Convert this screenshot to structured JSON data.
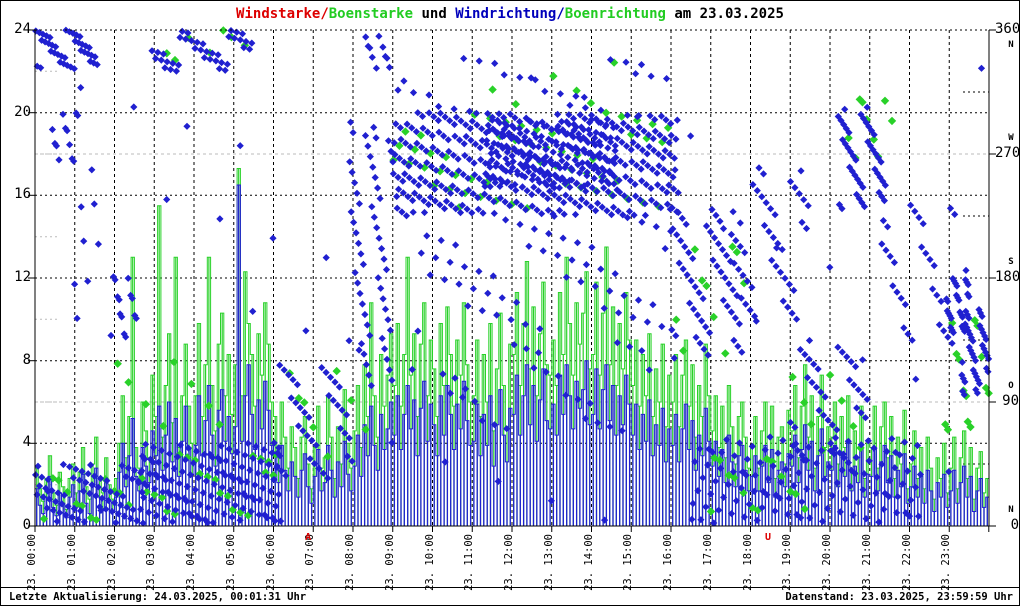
{
  "title": {
    "segments": [
      {
        "text": "Windstarke/",
        "color": "#dd0000"
      },
      {
        "text": "Boenstarke",
        "color": "#22cc22"
      },
      {
        "text": " und ",
        "color": "#000000"
      },
      {
        "text": "Windrichtung/",
        "color": "#0000bb"
      },
      {
        "text": "Boenrichtung",
        "color": "#22cc22"
      },
      {
        "text": " am 23.03.2025",
        "color": "#000000"
      }
    ]
  },
  "status_bar": {
    "left": "Letzte Aktualisierung: 24.03.2025, 00:01:31 Uhr",
    "right": "Datenstand: 23.03.2025, 23:59:59 Uhr"
  },
  "chart_data": {
    "type": "scatter",
    "title": "Windstarke/Boenstarke und Windrichtung/Boenrichtung am 23.03.2025",
    "grid": "on",
    "x_axis": {
      "range_hours": [
        0,
        24
      ],
      "tick_labels": [
        "23. 00:00",
        "23. 01:00",
        "23. 02:00",
        "23. 03:00",
        "23. 04:00",
        "23. 05:00",
        "23. 06:00",
        "23. 07:00",
        "23. 08:00",
        "23. 09:00",
        "23. 10:00",
        "23. 11:00",
        "23. 12:00",
        "23. 13:00",
        "23. 14:00",
        "23. 15:00",
        "23. 16:00",
        "23. 17:00",
        "23. 18:00",
        "23. 19:00",
        "23. 20:00",
        "23. 21:00",
        "23. 22:00",
        "23. 23:00"
      ]
    },
    "y_left": {
      "range": [
        0,
        24
      ],
      "major_ticks": [
        0,
        4,
        8,
        12,
        16,
        20,
        24
      ],
      "minor_ticks": [
        2,
        6,
        10,
        14,
        18,
        22
      ]
    },
    "y_right": {
      "range": [
        0,
        360
      ],
      "major_ticks": [
        {
          "value": 360,
          "compass": "N",
          "compass_pos": "below"
        },
        {
          "value": 270,
          "compass": "W",
          "compass_pos": "above"
        },
        {
          "value": 180,
          "compass": "S",
          "compass_pos": "above"
        },
        {
          "value": 90,
          "compass": "O",
          "compass_pos": "above"
        },
        {
          "value": 0,
          "compass": "N",
          "compass_pos": "above"
        }
      ],
      "minor_ticks": [
        45,
        135,
        225,
        315
      ]
    },
    "sun_markers": [
      {
        "label": "A",
        "hour": 6.87
      },
      {
        "label": "U",
        "hour": 18.44
      }
    ],
    "colors": {
      "wind": "#2020d0",
      "gust": "#29d129",
      "grid_major": "#000000",
      "grid_minor": "#bbbbbb",
      "sun_marker": "#dd0000"
    },
    "series": {
      "windstaerke": {
        "name": "Windstarke",
        "render": "spikes",
        "axis": "left",
        "step_minutes": 5,
        "values_by_hour": [
          [
            1.8,
            1.0,
            0.6,
            1.4,
            2.4,
            0.9,
            0.5,
            1.6,
            1.1,
            0.4,
            1.4,
            2.0
          ],
          [
            0.9,
            1.7,
            2.5,
            1.1,
            0.6,
            1.9,
            2.8,
            1.4,
            0.8,
            2.1,
            1.2,
            0.7
          ],
          [
            1.4,
            2.6,
            4.0,
            1.9,
            3.4,
            5.2,
            2.4,
            1.7,
            3.8,
            2.9,
            2.1,
            4.6
          ],
          [
            3.4,
            5.8,
            2.7,
            4.4,
            6.0,
            3.1,
            5.2,
            2.4,
            4.1,
            5.8,
            3.7,
            2.5
          ],
          [
            3.9,
            6.3,
            3.4,
            5.1,
            6.8,
            4.4,
            2.9,
            5.6,
            6.6,
            4.1,
            5.3,
            3.5
          ],
          [
            4.8,
            16.5,
            4.1,
            6.3,
            7.8,
            5.4,
            3.7,
            6.1,
            4.7,
            7.0,
            5.6,
            3.9
          ],
          [
            3.4,
            2.1,
            3.9,
            2.7,
            1.7,
            3.1,
            2.4,
            1.4,
            2.7,
            3.5,
            1.9,
            1.1
          ],
          [
            2.4,
            3.7,
            1.7,
            2.1,
            3.9,
            2.7,
            1.4,
            3.1,
            1.9,
            4.1,
            2.5,
            1.7
          ],
          [
            2.9,
            4.4,
            2.4,
            4.9,
            3.4,
            5.8,
            3.9,
            2.7,
            5.4,
            3.7,
            4.7,
            6.0
          ],
          [
            4.4,
            6.3,
            3.7,
            5.4,
            6.8,
            4.7,
            6.1,
            3.4,
            5.7,
            7.0,
            4.1,
            5.9
          ],
          [
            4.9,
            3.4,
            6.3,
            4.4,
            6.8,
            5.4,
            3.7,
            5.9,
            4.7,
            7.0,
            5.1,
            3.9
          ],
          [
            4.1,
            5.9,
            3.4,
            5.4,
            3.9,
            6.3,
            2.9,
            4.9,
            6.6,
            4.4,
            3.1,
            5.7
          ],
          [
            5.4,
            7.3,
            4.4,
            6.3,
            7.8,
            4.9,
            6.8,
            4.1,
            6.1,
            7.6,
            5.1,
            4.7
          ],
          [
            5.9,
            4.4,
            7.3,
            5.4,
            7.8,
            6.3,
            4.7,
            7.0,
            5.7,
            6.6,
            8.0,
            4.9
          ],
          [
            5.4,
            7.6,
            4.7,
            6.6,
            7.8,
            5.1,
            6.8,
            4.4,
            6.3,
            4.9,
            7.3,
            5.9
          ],
          [
            4.4,
            5.9,
            3.7,
            5.4,
            4.1,
            6.1,
            3.4,
            4.9,
            3.9,
            5.7,
            3.1,
            4.7
          ],
          [
            3.9,
            5.4,
            3.1,
            4.7,
            5.9,
            3.7,
            5.1,
            2.7,
            4.4,
            3.4,
            5.7,
            4.1
          ],
          [
            2.9,
            4.1,
            2.4,
            3.7,
            2.1,
            4.4,
            3.1,
            1.9,
            3.4,
            3.9,
            2.7,
            1.7
          ],
          [
            2.4,
            3.4,
            1.7,
            2.9,
            3.9,
            2.1,
            3.7,
            1.4,
            2.7,
            3.1,
            1.9,
            3.5
          ],
          [
            2.9,
            4.4,
            2.1,
            3.7,
            4.9,
            2.7,
            4.1,
            1.7,
            3.4,
            4.7,
            2.4,
            3.1
          ],
          [
            2.7,
            3.9,
            1.9,
            3.4,
            2.4,
            4.1,
            1.7,
            2.9,
            2.1,
            3.7,
            1.4,
            2.5
          ],
          [
            2.4,
            3.7,
            1.7,
            3.1,
            3.9,
            2.1,
            3.4,
            1.4,
            2.7,
            1.9,
            3.5,
            1.1
          ],
          [
            1.9,
            2.9,
            1.4,
            2.4,
            1.1,
            2.7,
            1.7,
            0.7,
            2.1,
            1.4,
            2.5,
            0.9
          ],
          [
            1.7,
            2.7,
            1.1,
            2.1,
            2.9,
            1.4,
            2.4,
            0.7,
            1.7,
            2.3,
            0.9,
            1.4
          ]
        ]
      },
      "boenstaerke": {
        "name": "Boenstarke",
        "render": "step",
        "axis": "left",
        "step_minutes": 5,
        "values_by_hour": [
          [
            2.8,
            1.8,
            1.2,
            2.3,
            3.4,
            1.6,
            1.0,
            2.6,
            1.9,
            0.8,
            2.3,
            3.0
          ],
          [
            1.6,
            2.6,
            3.8,
            1.9,
            1.3,
            3.0,
            4.3,
            2.3,
            1.6,
            3.3,
            2.0,
            1.3
          ],
          [
            2.3,
            4.0,
            6.3,
            3.3,
            5.3,
            13.0,
            3.8,
            2.8,
            6.0,
            4.6,
            3.3,
            7.3
          ],
          [
            5.3,
            15.5,
            4.3,
            6.8,
            9.3,
            5.0,
            13.0,
            3.8,
            6.3,
            8.8,
            5.8,
            4.0
          ],
          [
            6.3,
            9.8,
            5.3,
            7.8,
            13.0,
            6.8,
            4.6,
            8.8,
            10.3,
            6.3,
            8.3,
            5.4
          ],
          [
            7.8,
            17.3,
            6.3,
            12.3,
            9.8,
            8.3,
            5.8,
            9.3,
            7.3,
            10.8,
            8.8,
            6.0
          ],
          [
            5.3,
            3.3,
            6.0,
            4.3,
            2.8,
            4.8,
            3.8,
            2.3,
            4.3,
            5.3,
            3.0,
            1.8
          ],
          [
            3.8,
            5.8,
            2.8,
            3.3,
            6.3,
            4.3,
            2.3,
            4.8,
            3.0,
            6.6,
            4.0,
            2.8
          ],
          [
            4.6,
            6.8,
            3.8,
            7.8,
            5.3,
            10.8,
            6.3,
            4.3,
            8.3,
            5.8,
            7.3,
            9.3
          ],
          [
            6.8,
            9.8,
            5.8,
            8.3,
            13.0,
            7.3,
            9.3,
            5.3,
            8.8,
            10.8,
            6.3,
            9.0
          ],
          [
            7.6,
            5.3,
            9.8,
            6.8,
            10.6,
            8.3,
            5.8,
            9.0,
            7.3,
            10.8,
            7.8,
            6.0
          ],
          [
            6.3,
            9.0,
            5.3,
            8.3,
            6.0,
            9.8,
            4.6,
            7.6,
            10.3,
            6.8,
            4.8,
            8.8
          ],
          [
            8.3,
            11.3,
            6.8,
            9.8,
            12.8,
            7.6,
            10.6,
            6.3,
            9.3,
            11.8,
            7.8,
            7.3
          ],
          [
            9.0,
            6.8,
            11.3,
            8.3,
            13.0,
            9.8,
            7.3,
            10.8,
            8.8,
            10.3,
            12.3,
            7.6
          ],
          [
            8.3,
            11.8,
            7.3,
            10.3,
            13.5,
            7.8,
            10.6,
            6.8,
            9.8,
            7.6,
            11.3,
            9.0
          ],
          [
            6.8,
            9.0,
            5.8,
            8.3,
            6.3,
            9.3,
            5.3,
            7.6,
            6.0,
            8.8,
            4.8,
            7.3
          ],
          [
            6.0,
            8.3,
            4.8,
            7.3,
            9.0,
            5.8,
            7.8,
            4.3,
            6.8,
            5.3,
            8.8,
            6.3
          ],
          [
            4.6,
            6.3,
            3.8,
            5.8,
            3.3,
            6.8,
            4.8,
            3.0,
            5.3,
            6.0,
            4.3,
            2.8
          ],
          [
            3.8,
            5.3,
            2.8,
            4.6,
            6.0,
            3.3,
            5.8,
            2.3,
            4.3,
            4.8,
            3.0,
            5.6
          ],
          [
            4.6,
            6.8,
            3.3,
            5.8,
            7.8,
            4.3,
            6.3,
            2.8,
            5.3,
            7.3,
            3.8,
            4.8
          ],
          [
            4.3,
            6.0,
            3.0,
            5.3,
            3.8,
            6.3,
            2.8,
            4.6,
            3.3,
            5.8,
            2.3,
            4.0
          ],
          [
            3.8,
            5.8,
            2.8,
            4.8,
            6.0,
            3.3,
            5.3,
            2.3,
            4.3,
            3.0,
            5.6,
            1.8
          ],
          [
            3.0,
            4.6,
            2.3,
            3.8,
            1.8,
            4.3,
            2.8,
            1.3,
            3.3,
            2.3,
            4.0,
            1.6
          ],
          [
            2.8,
            4.3,
            1.8,
            3.3,
            4.6,
            2.3,
            3.8,
            1.3,
            2.8,
            3.6,
            1.6,
            2.3
          ]
        ]
      },
      "windrichtung": {
        "name": "Windrichtung",
        "render": "diamonds",
        "axis": "right",
        "clusters_t0_t1_deg0_deg1_n": [
          [
            0.0,
            1.6,
            330,
            360,
            40
          ],
          [
            0.0,
            2.8,
            2,
            45,
            70
          ],
          [
            0.4,
            1.1,
            260,
            305,
            12
          ],
          [
            0.9,
            1.6,
            150,
            260,
            8
          ],
          [
            1.9,
            2.6,
            130,
            185,
            14
          ],
          [
            2.6,
            6.2,
            2,
            60,
            130
          ],
          [
            2.9,
            5.5,
            330,
            360,
            40
          ],
          [
            6.0,
            8.0,
            30,
            120,
            40
          ],
          [
            7.9,
            9.0,
            100,
            295,
            55
          ],
          [
            8.3,
            9.0,
            330,
            360,
            10
          ],
          [
            9.0,
            16.2,
            225,
            300,
            380
          ],
          [
            11.3,
            14.6,
            245,
            295,
            160
          ],
          [
            9.5,
            16.0,
            140,
            225,
            55
          ],
          [
            10.0,
            15.5,
            60,
            135,
            25
          ],
          [
            9.0,
            16.0,
            300,
            345,
            25
          ],
          [
            16.0,
            17.8,
            120,
            230,
            55
          ],
          [
            16.5,
            22.3,
            2,
            65,
            120
          ],
          [
            17.5,
            19.5,
            150,
            262,
            45
          ],
          [
            19.0,
            21.0,
            40,
            130,
            40
          ],
          [
            20.2,
            21.4,
            230,
            305,
            45
          ],
          [
            21.3,
            23.2,
            120,
            235,
            30
          ],
          [
            22.9,
            23.5,
            140,
            186,
            28
          ],
          [
            23.3,
            24.0,
            95,
            158,
            42
          ],
          [
            0.0,
            24.0,
            0,
            360,
            36
          ]
        ]
      },
      "boenrichtung": {
        "name": "Boenrichtung",
        "render": "diamonds",
        "axis": "right",
        "clusters_t0_t1_deg0_deg1_n": [
          [
            0.0,
            2.5,
            2,
            40,
            12
          ],
          [
            2.0,
            5.0,
            60,
            120,
            8
          ],
          [
            2.5,
            6.0,
            2,
            55,
            22
          ],
          [
            3.0,
            5.3,
            338,
            360,
            7
          ],
          [
            6.0,
            8.5,
            40,
            120,
            9
          ],
          [
            9.0,
            16.0,
            230,
            300,
            55
          ],
          [
            11.0,
            15.0,
            300,
            340,
            6
          ],
          [
            16.0,
            18.0,
            120,
            220,
            10
          ],
          [
            17.0,
            19.5,
            2,
            50,
            14
          ],
          [
            19.0,
            21.0,
            50,
            120,
            8
          ],
          [
            20.4,
            21.6,
            255,
            310,
            9
          ],
          [
            22.8,
            24.0,
            60,
            160,
            14
          ]
        ]
      }
    }
  }
}
